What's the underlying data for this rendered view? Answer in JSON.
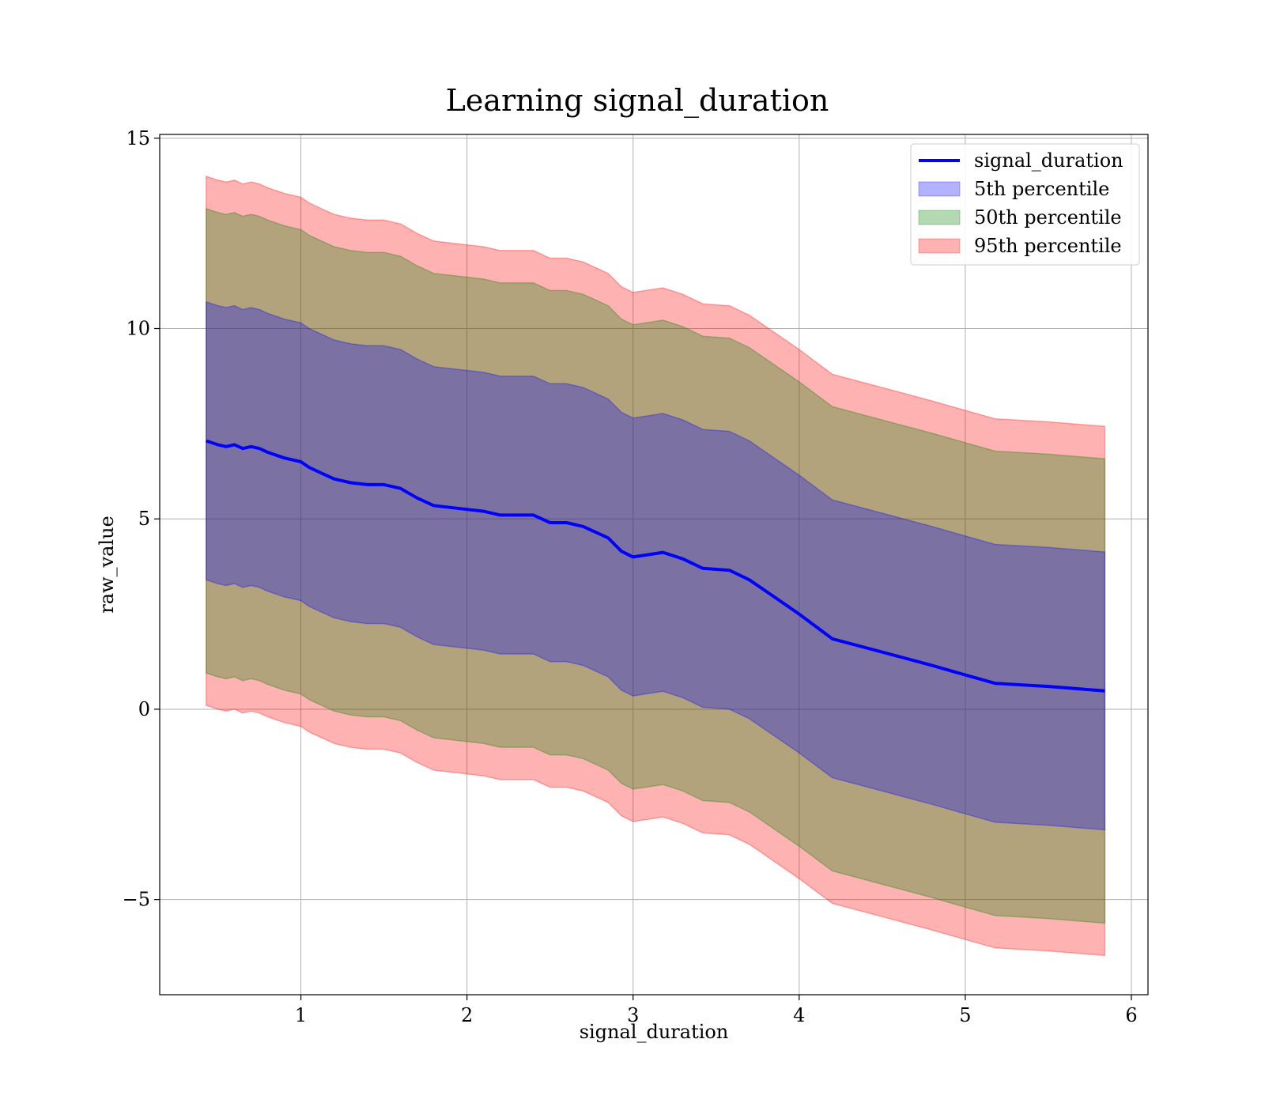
{
  "chart_data": {
    "type": "area",
    "title": "Learning signal_duration",
    "xlabel": "signal_duration",
    "ylabel": "raw_value",
    "xlim": [
      0.15,
      6.1
    ],
    "ylim": [
      -7.5,
      15.1
    ],
    "xticks": [
      1,
      2,
      3,
      4,
      5,
      6
    ],
    "xtick_labels": [
      "1",
      "2",
      "3",
      "4",
      "5",
      "6"
    ],
    "yticks": [
      -5,
      0,
      5,
      10,
      15
    ],
    "ytick_labels": [
      "−5",
      "0",
      "5",
      "10",
      "15"
    ],
    "grid": true,
    "legend_position": "top-right",
    "legend": [
      {
        "label": "signal_duration",
        "kind": "line",
        "color": "#0000ff"
      },
      {
        "label": "5th percentile",
        "kind": "patch",
        "color": "#0000ff"
      },
      {
        "label": "50th percentile",
        "kind": "patch",
        "color": "#008000"
      },
      {
        "label": "95th percentile",
        "kind": "patch",
        "color": "#ff0000"
      }
    ],
    "line": {
      "name": "signal_duration",
      "color": "#0000ff",
      "x": [
        0.43,
        0.5,
        0.55,
        0.6,
        0.65,
        0.7,
        0.75,
        0.8,
        0.9,
        1.0,
        1.05,
        1.1,
        1.2,
        1.25,
        1.3,
        1.4,
        1.5,
        1.55,
        1.6,
        1.7,
        1.8,
        1.9,
        2.0,
        2.1,
        2.2,
        2.3,
        2.4,
        2.5,
        2.6,
        2.7,
        2.85,
        2.93,
        3.0,
        3.18,
        3.3,
        3.42,
        3.58,
        3.7,
        3.85,
        4.0,
        4.2,
        4.5,
        4.8,
        5.0,
        5.18,
        5.5,
        5.84
      ],
      "center": [
        7.05,
        6.95,
        6.9,
        6.95,
        6.85,
        6.9,
        6.85,
        6.75,
        6.6,
        6.5,
        6.35,
        6.25,
        6.05,
        6.0,
        5.95,
        5.9,
        5.9,
        5.85,
        5.8,
        5.55,
        5.35,
        5.3,
        5.25,
        5.2,
        5.1,
        5.1,
        5.1,
        4.9,
        4.9,
        4.8,
        4.5,
        4.15,
        4.0,
        4.12,
        3.95,
        3.7,
        3.65,
        3.4,
        2.95,
        2.5,
        1.85,
        1.5,
        1.15,
        0.9,
        0.68,
        0.6,
        0.48
      ]
    },
    "bands": [
      {
        "name": "95th percentile",
        "color": "#ff0000",
        "opacity": 0.3,
        "half_width": 6.95
      },
      {
        "name": "50th percentile",
        "color": "#008000",
        "opacity": 0.3,
        "half_width": 6.1
      },
      {
        "name": "5th percentile",
        "color": "#0000ff",
        "opacity": 0.3,
        "half_width": 3.65
      }
    ]
  }
}
